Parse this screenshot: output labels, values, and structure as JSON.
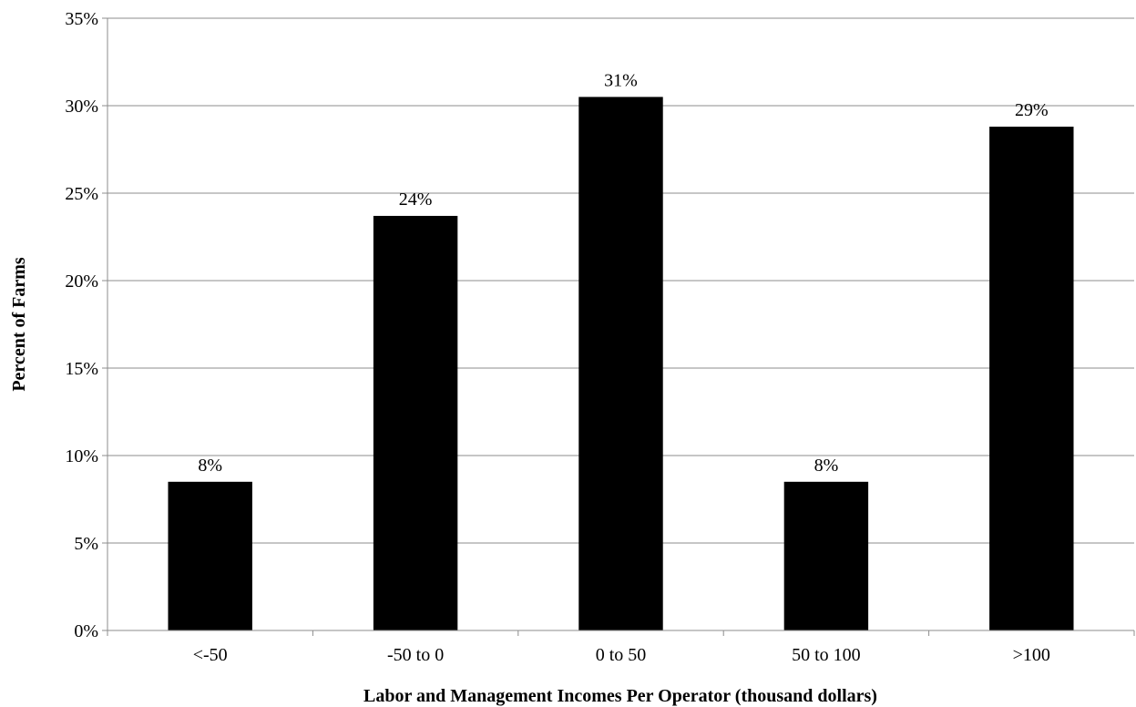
{
  "chart_data": {
    "type": "bar",
    "categories": [
      "<-50",
      "-50 to 0",
      "0 to 50",
      "50 to 100",
      ">100"
    ],
    "values": [
      8.5,
      23.7,
      30.5,
      8.5,
      28.8
    ],
    "data_labels": [
      "8%",
      "24%",
      "31%",
      "8%",
      "29%"
    ],
    "xlabel": "Labor and Management Incomes Per Operator (thousand dollars)",
    "ylabel": "Percent of Farms",
    "ylim": [
      0,
      35
    ],
    "yticks": [
      0,
      5,
      10,
      15,
      20,
      25,
      30,
      35
    ],
    "ytick_labels": [
      "0%",
      "5%",
      "10%",
      "15%",
      "20%",
      "25%",
      "30%",
      "35%"
    ],
    "grid": true,
    "legend": "none",
    "bar_color": "#000000"
  }
}
